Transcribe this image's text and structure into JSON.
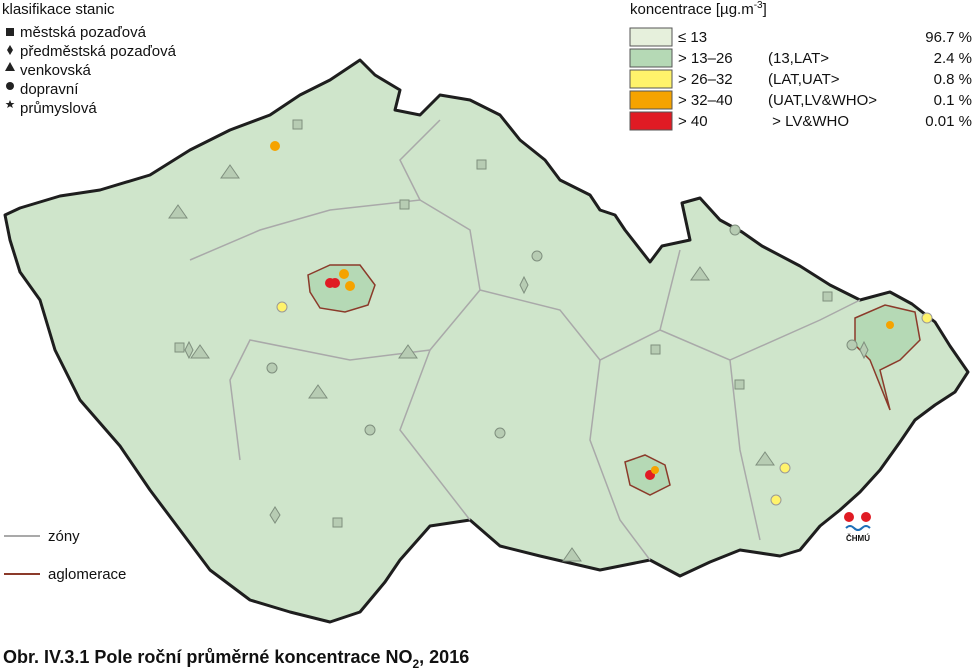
{
  "station_legend": {
    "title": "klasifikace stanic",
    "items": [
      "městská pozaďová",
      "předměstská pozaďová",
      "venkovská",
      "dopravní",
      "průmyslová"
    ]
  },
  "concentration_legend": {
    "title_prefix": "koncentrace [µg.m",
    "title_sup": "-3",
    "title_suffix": "]",
    "classes": [
      {
        "range": "≤ 13",
        "interval": "",
        "share": "96.7 %",
        "color": "#e6f0dc"
      },
      {
        "range": "> 13–26",
        "interval": "(13,LAT>",
        "share": "2.4 %",
        "color": "#b5d9b5"
      },
      {
        "range": "> 26–32",
        "interval": "(LAT,UAT>",
        "share": "0.8 %",
        "color": "#fff36b"
      },
      {
        "range": "> 32–40",
        "interval": "(UAT,LV&WHO>",
        "share": "0.1 %",
        "color": "#f5a300"
      },
      {
        "range": "> 40",
        "interval": " > LV&WHO",
        "share": "0.01 %",
        "color": "#e01b24"
      }
    ]
  },
  "line_legend": {
    "zones": "zóny",
    "agglomerations": "aglomerace"
  },
  "logo": "ČHMÚ",
  "caption": {
    "prefix": "Obr. IV.3.1  Pole roční průměrné koncentrace NO",
    "sub": "2",
    "suffix": ", 2016"
  }
}
